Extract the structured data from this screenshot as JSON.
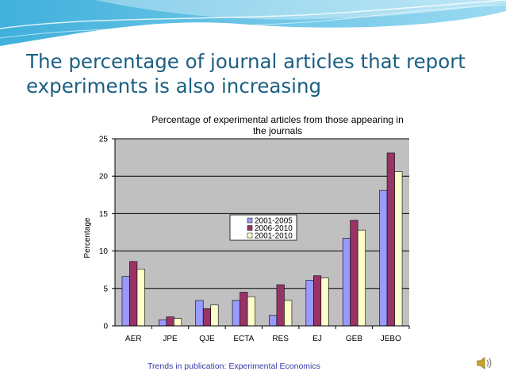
{
  "slide": {
    "title_line1": "The percentage of journal articles that report",
    "title_line2": "experiments is also increasing",
    "footer": "Trends in publication: Experimental Economics",
    "colors": {
      "title": "#1c5f83",
      "background_wave": "#37b5df",
      "footer": "#3a3aa8"
    },
    "icons": [
      "speaker-icon"
    ]
  },
  "chart_data": {
    "type": "bar",
    "title_line1": "Percentage of experimental articles from those appearing in",
    "title_line2": "the journals",
    "ylabel": "Percentage",
    "xlabel": "",
    "ylim": [
      0,
      25
    ],
    "yticks": [
      0,
      5,
      10,
      15,
      20,
      25
    ],
    "grid": true,
    "legend_position": "center",
    "categories": [
      "AER",
      "JPE",
      "QJE",
      "ECTA",
      "RES",
      "EJ",
      "GEB",
      "JEBO"
    ],
    "series": [
      {
        "name": "2001-2005",
        "color": "#9999ff",
        "values": [
          6.6,
          0.8,
          3.4,
          3.4,
          1.4,
          6.1,
          11.7,
          18.1
        ]
      },
      {
        "name": "2006-2010",
        "color": "#993366",
        "values": [
          8.6,
          1.2,
          2.3,
          4.5,
          5.5,
          6.7,
          14.1,
          23.1
        ]
      },
      {
        "name": "2001-2010",
        "color": "#ffffcc",
        "values": [
          7.6,
          1.0,
          2.8,
          3.9,
          3.4,
          6.4,
          12.8,
          20.6
        ]
      }
    ]
  }
}
